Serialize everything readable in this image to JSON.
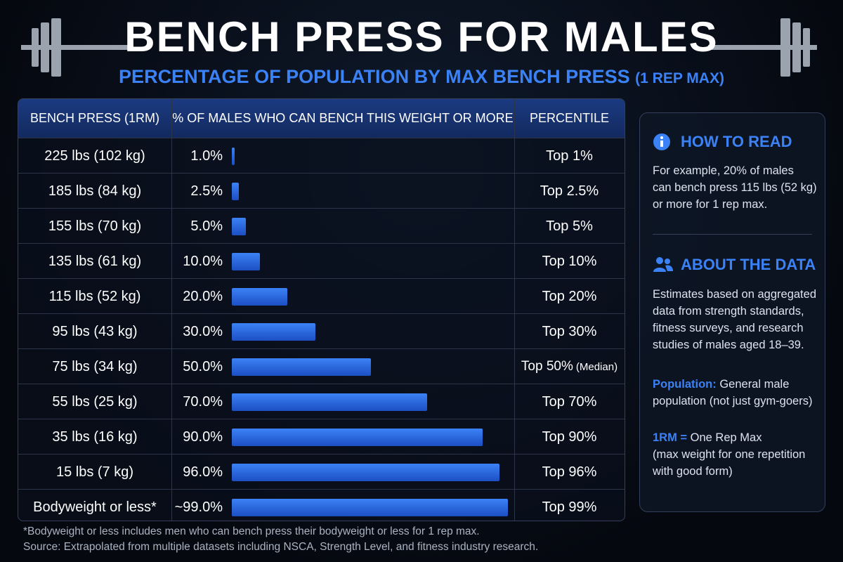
{
  "header": {
    "title": "BENCH PRESS FOR MALES",
    "subtitle": "PERCENTAGE OF POPULATION BY MAX BENCH PRESS",
    "subtitle_suffix": "(1 REP MAX)"
  },
  "table": {
    "columns": [
      "BENCH PRESS (1RM)",
      "% OF MALES WHO CAN BENCH THIS WEIGHT OR MORE",
      "PERCENTILE"
    ],
    "rows": [
      {
        "weight": "225 lbs (102 kg)",
        "percent": 1,
        "percent_label": "1.0%",
        "percentile": "Top 1%"
      },
      {
        "weight": "185 lbs (84 kg)",
        "percent": 2.5,
        "percent_label": "2.5%",
        "percentile": "Top 2.5%"
      },
      {
        "weight": "155 lbs (70 kg)",
        "percent": 5,
        "percent_label": "5.0%",
        "percentile": "Top 5%"
      },
      {
        "weight": "135 lbs (61 kg)",
        "percent": 10,
        "percent_label": "10.0%",
        "percentile": "Top 10%"
      },
      {
        "weight": "115 lbs (52 kg)",
        "percent": 20,
        "percent_label": "20.0%",
        "percentile": "Top 20%"
      },
      {
        "weight": "95 lbs (43 kg)",
        "percent": 30,
        "percent_label": "30.0%",
        "percentile": "Top 30%"
      },
      {
        "weight": "75 lbs (34 kg)",
        "percent": 50,
        "percent_label": "50.0%",
        "percentile": "Top 50%",
        "note": "(Median)"
      },
      {
        "weight": "55 lbs (25 kg)",
        "percent": 70,
        "percent_label": "70.0%",
        "percentile": "Top 70%"
      },
      {
        "weight": "35 lbs (16 kg)",
        "percent": 90,
        "percent_label": "90.0%",
        "percentile": "Top 90%"
      },
      {
        "weight": "15 lbs (7 kg)",
        "percent": 96,
        "percent_label": "96.0%",
        "percentile": "Top 96%"
      },
      {
        "weight": "Bodyweight or less*",
        "percent": 99,
        "percent_label": "~99.0%",
        "percentile": "Top 99%"
      }
    ]
  },
  "side": {
    "how_to_read": {
      "title": "HOW TO READ",
      "lines": [
        "For example, 20% of males",
        "can bench press 115 lbs (52 kg)",
        "or more for 1 rep max."
      ]
    },
    "about": {
      "title": "ABOUT THE DATA",
      "lines": [
        "Estimates based on aggregated",
        "data from strength standards,",
        "fitness surveys, and research",
        "studies of males aged 18–39."
      ]
    },
    "population": {
      "label": "Population:",
      "lines": [
        "General male",
        "population (not just gym-goers)"
      ]
    },
    "rm": {
      "label": "1RM =",
      "lines": [
        "One Rep Max",
        "(max weight for one repetition",
        "with good form)"
      ]
    }
  },
  "footer": [
    "*Bodyweight or less includes men who can bench press their bodyweight or less for 1 rep max.",
    "Source: Extrapolated from multiple datasets including NSCA, Strength Level, and fitness industry research."
  ]
}
